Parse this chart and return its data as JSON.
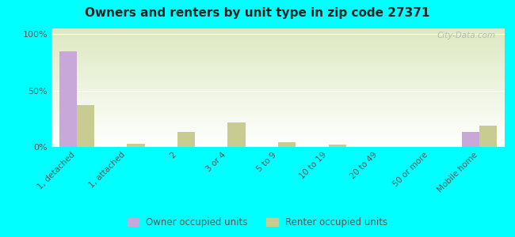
{
  "title": "Owners and renters by unit type in zip code 27371",
  "categories": [
    "1, detached",
    "1, attached",
    "2",
    "3 or 4",
    "5 to 9",
    "10 to 19",
    "20 to 49",
    "50 or more",
    "Mobile home"
  ],
  "owner_values": [
    85,
    0,
    0,
    0,
    0,
    0,
    0,
    0,
    13
  ],
  "renter_values": [
    37,
    3,
    13,
    22,
    4,
    2,
    0,
    0,
    19
  ],
  "owner_color": "#c8a8d8",
  "renter_color": "#c8cc90",
  "background_color": "#00ffff",
  "plot_bg_color": "#dce8c0",
  "ylabel_ticks": [
    "0%",
    "50%",
    "100%"
  ],
  "ytick_vals": [
    0,
    50,
    100
  ],
  "ylim": [
    0,
    105
  ],
  "bar_width": 0.35,
  "watermark": "City-Data.com",
  "legend_labels": [
    "Owner occupied units",
    "Renter occupied units"
  ]
}
